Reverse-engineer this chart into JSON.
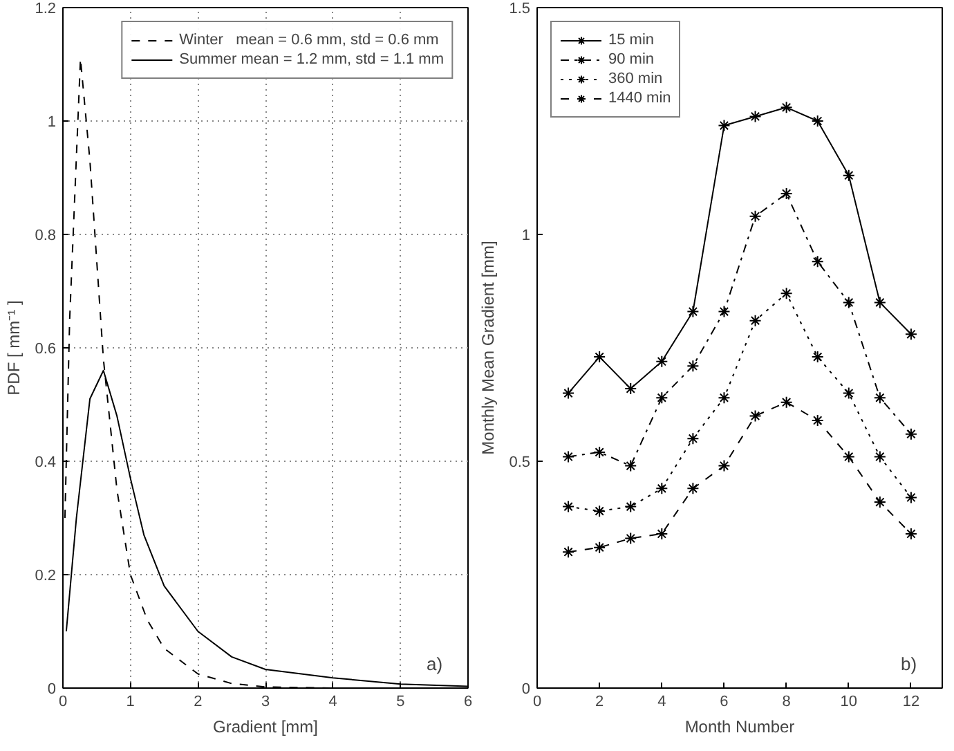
{
  "chart_data": [
    {
      "type": "line",
      "xlabel": "Gradient [mm]",
      "ylabel": "PDF [ mm⁻¹ ]",
      "xlim": [
        0,
        6
      ],
      "ylim": [
        0,
        1.2
      ],
      "xticks": [
        0,
        1,
        2,
        3,
        4,
        5,
        6
      ],
      "yticks": [
        0,
        0.2,
        0.4,
        0.6,
        0.8,
        1,
        1.2
      ],
      "grid": true,
      "legend": "top right",
      "marker": "none",
      "annotations": [
        "a)"
      ],
      "series": [
        {
          "name": "Winter   mean = 0.6 mm, std = 0.6 mm",
          "color": "#000000",
          "line_style": "dashed",
          "x": [
            0.03,
            0.1,
            0.26,
            0.4,
            0.6,
            0.8,
            1,
            1.25,
            1.5,
            2,
            2.5,
            3,
            4,
            5,
            6
          ],
          "values": [
            0.3,
            0.65,
            1.11,
            0.93,
            0.58,
            0.35,
            0.2,
            0.12,
            0.07,
            0.025,
            0.008,
            0.002,
            0,
            0,
            0
          ]
        },
        {
          "name": "Summer mean = 1.2 mm, std = 1.1 mm",
          "color": "#000000",
          "line_style": "solid",
          "x": [
            0.05,
            0.2,
            0.4,
            0.6,
            0.8,
            1,
            1.2,
            1.5,
            2,
            2.5,
            3,
            4,
            5,
            6
          ],
          "values": [
            0.1,
            0.3,
            0.51,
            0.56,
            0.48,
            0.37,
            0.27,
            0.18,
            0.1,
            0.055,
            0.033,
            0.018,
            0.007,
            0.003
          ]
        }
      ]
    },
    {
      "type": "line",
      "xlabel": "Month Number",
      "ylabel": "Monthly Mean Gradient [mm]",
      "xlim": [
        0,
        13
      ],
      "ylim": [
        0,
        1.5
      ],
      "xticks": [
        0,
        2,
        4,
        6,
        8,
        10,
        12
      ],
      "yticks": [
        0,
        0.5,
        1,
        1.5
      ],
      "grid": false,
      "legend": "top left",
      "marker": "cross",
      "annotations": [
        "b)"
      ],
      "x": [
        1,
        2,
        3,
        4,
        5,
        6,
        7,
        8,
        9,
        10,
        11,
        12
      ],
      "series": [
        {
          "name": "15 min",
          "color": "#000000",
          "line_style": "solid",
          "values": [
            0.65,
            0.73,
            0.66,
            0.72,
            0.83,
            1.24,
            1.26,
            1.28,
            1.25,
            1.13,
            0.85,
            0.78
          ]
        },
        {
          "name": "90 min",
          "color": "#000000",
          "line_style": "dashdot",
          "values": [
            0.51,
            0.52,
            0.49,
            0.64,
            0.71,
            0.83,
            1.04,
            1.09,
            0.94,
            0.85,
            0.64,
            0.56
          ]
        },
        {
          "name": "360 min",
          "color": "#000000",
          "line_style": "dotted",
          "values": [
            0.4,
            0.39,
            0.4,
            0.44,
            0.55,
            0.64,
            0.81,
            0.87,
            0.73,
            0.65,
            0.51,
            0.42
          ]
        },
        {
          "name": "1440 min",
          "color": "#000000",
          "line_style": "dashed",
          "values": [
            0.3,
            0.31,
            0.33,
            0.34,
            0.44,
            0.49,
            0.6,
            0.63,
            0.59,
            0.51,
            0.41,
            0.34
          ]
        }
      ]
    }
  ]
}
